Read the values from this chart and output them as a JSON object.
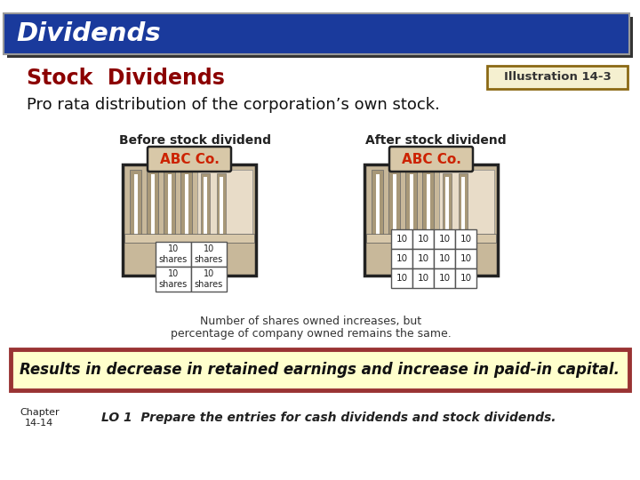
{
  "title_bar_text": "Dividends",
  "title_bar_bg": "#1a3a9c",
  "subtitle_text": "Stock  Dividends",
  "subtitle_color": "#8b0000",
  "illustration_label": "Illustration 14-3",
  "illustration_box_bg": "#f5f0d0",
  "illustration_box_border": "#8b6914",
  "body_text": "Pro rata distribution of the corporation’s own stock.",
  "before_label": "Before stock dividend",
  "after_label": "After stock dividend",
  "caption_line1": "Number of shares owned increases, but",
  "caption_line2": "percentage of company owned remains the same.",
  "result_text": "Results in decrease in retained earnings and increase in paid-in capital.",
  "result_box_bg": "#ffffcc",
  "result_box_border": "#993333",
  "chapter_text": "Chapter\n14-14",
  "lo_text": "LO 1  Prepare the entries for cash dividends and stock dividends.",
  "bg_color": "#ffffff",
  "text_color_dark": "#1a1a1a",
  "bldg_body": "#c8b89a",
  "bldg_col": "#a89878",
  "bldg_light": "#e8dcc8",
  "bldg_border": "#222222",
  "abc_co_color": "#cc2200",
  "sign_bg": "#d8c8a8"
}
